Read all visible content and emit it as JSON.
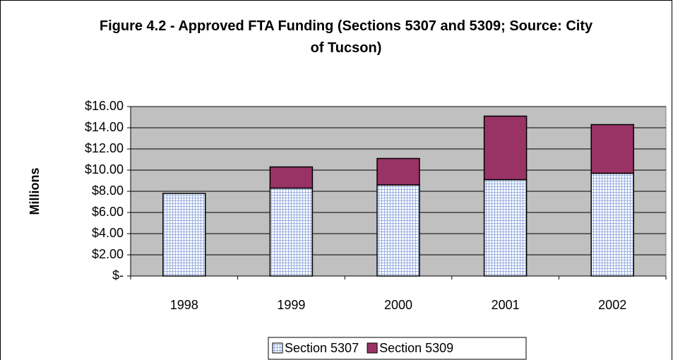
{
  "chart_data": {
    "type": "stacked_bar",
    "title": "Figure 4.2 - Approved FTA Funding (Sections 5307 and 5309; Source: City of Tucson)",
    "y_label": "Millions",
    "categories": [
      "1998",
      "1999",
      "2000",
      "2001",
      "2002"
    ],
    "series": [
      {
        "name": "Section 5307",
        "color": "#ffffff",
        "values": [
          7.8,
          8.3,
          8.6,
          9.1,
          9.7
        ]
      },
      {
        "name": "Section 5309",
        "color": "#993366",
        "values": [
          0,
          2.0,
          2.5,
          6.0,
          4.6
        ]
      }
    ],
    "ylim": [
      0,
      16
    ],
    "yticks": [
      {
        "value": 0,
        "label": "$-"
      },
      {
        "value": 2,
        "label": "$2.00"
      },
      {
        "value": 4,
        "label": "$4.00"
      },
      {
        "value": 6,
        "label": "$6.00"
      },
      {
        "value": 8,
        "label": "$8.00"
      },
      {
        "value": 10,
        "label": "$10.00"
      },
      {
        "value": 12,
        "label": "$12.00"
      },
      {
        "value": 14,
        "label": "$14.00"
      },
      {
        "value": 16,
        "label": "$16.00"
      }
    ],
    "grid": true,
    "legend": "bottom"
  }
}
